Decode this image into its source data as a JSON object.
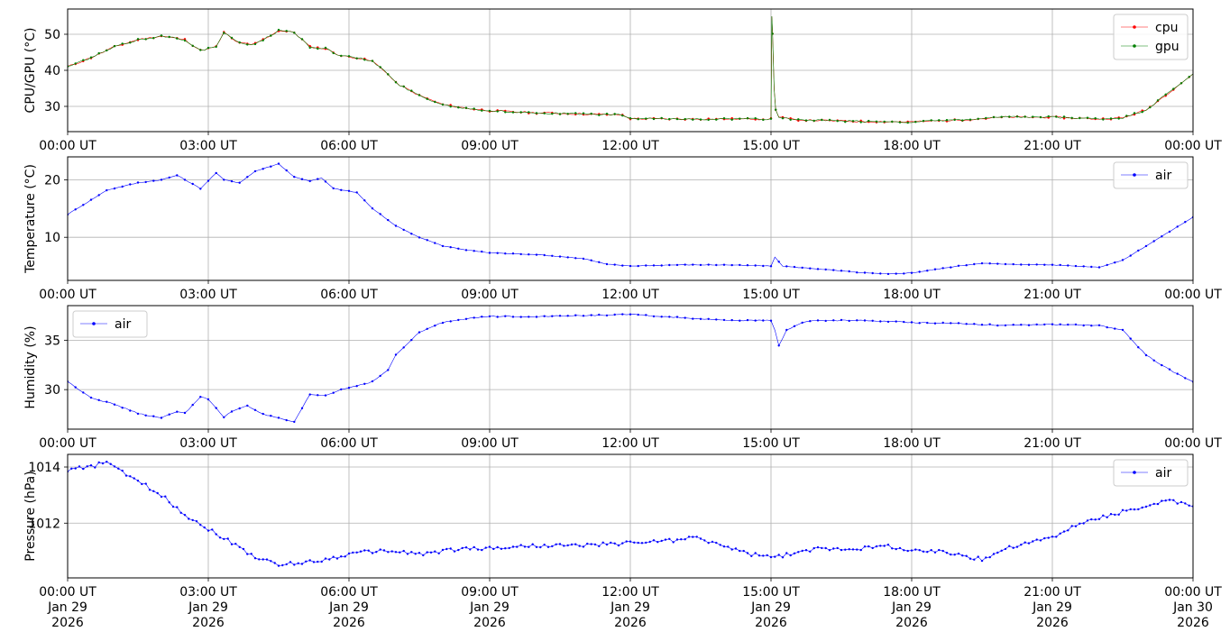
{
  "chart_data": [
    {
      "type": "line",
      "ylabel": "CPU/GPU (°C)",
      "ylim": [
        23,
        57
      ],
      "yticks": [
        30,
        40,
        50
      ],
      "legend_position": "top-right",
      "series": [
        {
          "name": "cpu",
          "color": "#ff0000",
          "x": [
            "00:00",
            "00:30",
            "01:00",
            "01:30",
            "02:00",
            "02:30",
            "02:50",
            "03:10",
            "03:20",
            "03:35",
            "03:55",
            "04:10",
            "04:30",
            "04:50",
            "05:10",
            "05:30",
            "05:50",
            "06:10",
            "06:30",
            "06:45",
            "07:00",
            "07:30",
            "08:00",
            "08:30",
            "09:00",
            "10:00",
            "11:00",
            "11:50",
            "12:00",
            "13:00",
            "14:00",
            "15:00",
            "15:01",
            "15:02",
            "15:04",
            "15:06",
            "15:10",
            "15:30",
            "16:00",
            "17:00",
            "18:00",
            "19:00",
            "20:00",
            "21:00",
            "22:00",
            "22:30",
            "23:00",
            "23:30",
            "24:00"
          ],
          "y": [
            41,
            43.5,
            46.5,
            48.5,
            49.5,
            48.5,
            45.5,
            46.5,
            50.5,
            48,
            47,
            48.5,
            51,
            50.5,
            46.5,
            46,
            44,
            43.5,
            42.5,
            40,
            36.5,
            33,
            30.5,
            29.5,
            28.8,
            28.2,
            27.9,
            27.6,
            26.6,
            26.5,
            26.5,
            26.5,
            55,
            50,
            35,
            29,
            27,
            26.3,
            26.1,
            25.8,
            25.7,
            26.2,
            27,
            27,
            26.5,
            26.8,
            29,
            34,
            39
          ]
        },
        {
          "name": "gpu",
          "color": "#008000",
          "x": [
            "00:00",
            "00:30",
            "01:00",
            "01:30",
            "02:00",
            "02:30",
            "02:50",
            "03:10",
            "03:20",
            "03:35",
            "03:55",
            "04:10",
            "04:30",
            "04:50",
            "05:10",
            "05:30",
            "05:50",
            "06:10",
            "06:30",
            "06:45",
            "07:00",
            "07:30",
            "08:00",
            "08:30",
            "09:00",
            "10:00",
            "11:00",
            "11:50",
            "12:00",
            "13:00",
            "14:00",
            "15:00",
            "15:01",
            "15:02",
            "15:04",
            "15:06",
            "15:10",
            "15:30",
            "16:00",
            "17:00",
            "18:00",
            "19:00",
            "20:00",
            "21:00",
            "22:00",
            "22:30",
            "23:00",
            "23:30",
            "24:00"
          ],
          "y": [
            41,
            43.5,
            46.5,
            48.5,
            49.5,
            48.5,
            45.5,
            46.5,
            50.5,
            48,
            47,
            48.5,
            51,
            50.5,
            46.5,
            46,
            44,
            43.5,
            42.5,
            40,
            36.5,
            33,
            30.5,
            29.5,
            28.8,
            28.2,
            27.9,
            27.6,
            26.6,
            26.5,
            26.5,
            26.5,
            55,
            50,
            35,
            29,
            27,
            26.3,
            26.1,
            25.8,
            25.7,
            26.2,
            27,
            27,
            26.5,
            26.8,
            29,
            34,
            39
          ]
        }
      ]
    },
    {
      "type": "line",
      "ylabel": "Temperature (°C)",
      "ylim": [
        2.5,
        24
      ],
      "yticks": [
        10,
        20
      ],
      "legend_position": "top-right",
      "series": [
        {
          "name": "air",
          "color": "#0000ff",
          "x": [
            "00:00",
            "00:30",
            "00:50",
            "01:30",
            "02:00",
            "02:20",
            "02:50",
            "03:10",
            "03:20",
            "03:40",
            "04:00",
            "04:30",
            "04:50",
            "05:10",
            "05:25",
            "05:40",
            "06:10",
            "06:30",
            "07:00",
            "07:30",
            "08:00",
            "08:30",
            "09:00",
            "10:00",
            "11:00",
            "11:30",
            "12:00",
            "13:00",
            "14:00",
            "15:00",
            "15:05",
            "15:15",
            "15:30",
            "16:00",
            "17:00",
            "17:30",
            "18:00",
            "19:00",
            "19:30",
            "20:00",
            "21:00",
            "21:30",
            "22:00",
            "22:30",
            "23:00",
            "23:30",
            "24:00"
          ],
          "y": [
            14,
            16.5,
            18.2,
            19.5,
            20,
            20.8,
            18.5,
            21.2,
            20,
            19.5,
            21.5,
            22.8,
            20.5,
            19.8,
            20.3,
            18.5,
            17.8,
            15,
            12,
            10,
            8.5,
            7.8,
            7.3,
            7,
            6.3,
            5.3,
            5,
            5.2,
            5.2,
            5,
            6.5,
            5,
            4.8,
            4.5,
            3.8,
            3.6,
            3.8,
            5,
            5.5,
            5.3,
            5.2,
            5,
            4.8,
            6,
            8.5,
            11,
            13.5
          ]
        }
      ]
    },
    {
      "type": "line",
      "ylabel": "Humidity (%)",
      "ylim": [
        26,
        38.5
      ],
      "yticks": [
        30,
        35
      ],
      "legend_position": "top-left",
      "series": [
        {
          "name": "air",
          "color": "#0000ff",
          "x": [
            "00:00",
            "00:30",
            "01:00",
            "01:30",
            "02:00",
            "02:10",
            "02:20",
            "02:30",
            "02:50",
            "03:00",
            "03:20",
            "03:30",
            "03:50",
            "04:10",
            "04:30",
            "04:50",
            "05:10",
            "05:30",
            "05:50",
            "06:10",
            "06:30",
            "06:50",
            "07:00",
            "07:30",
            "08:00",
            "08:30",
            "09:00",
            "10:00",
            "11:00",
            "12:00",
            "13:00",
            "14:00",
            "15:00",
            "15:05",
            "15:10",
            "15:20",
            "15:40",
            "16:00",
            "17:00",
            "18:00",
            "19:00",
            "20:00",
            "21:00",
            "22:00",
            "22:30",
            "23:00",
            "23:30",
            "24:00"
          ],
          "y": [
            30.8,
            29.2,
            28.5,
            27.6,
            27.1,
            27.5,
            27.8,
            27.6,
            29.3,
            29,
            27.2,
            27.8,
            28.4,
            27.5,
            27.1,
            26.7,
            29.5,
            29.4,
            30,
            30.4,
            30.8,
            32,
            33.5,
            35.8,
            36.8,
            37.2,
            37.4,
            37.4,
            37.5,
            37.6,
            37.3,
            37,
            37,
            36,
            34.5,
            36,
            36.8,
            37,
            37,
            36.8,
            36.7,
            36.5,
            36.6,
            36.5,
            36,
            33.5,
            32,
            30.8
          ]
        }
      ]
    },
    {
      "type": "line",
      "ylabel": "Pressure (hPa)",
      "ylim": [
        1010.05,
        1014.45
      ],
      "yticks": [
        1012,
        1014
      ],
      "legend_position": "top-right",
      "xlabel": "",
      "x_ticks": [
        "00:00 UT|Jan 29|2026",
        "03:00 UT|Jan 29|2026",
        "06:00 UT|Jan 29|2026",
        "09:00 UT|Jan 29|2026",
        "12:00 UT|Jan 29|2026",
        "15:00 UT|Jan 29|2026",
        "18:00 UT|Jan 29|2026",
        "21:00 UT|Jan 29|2026",
        "00:00 UT|Jan 30|2026"
      ],
      "series": [
        {
          "name": "air",
          "color": "#0000ff",
          "x": [
            "00:00",
            "00:30",
            "00:50",
            "01:10",
            "01:30",
            "02:00",
            "02:30",
            "03:00",
            "03:30",
            "04:00",
            "04:30",
            "05:00",
            "05:30",
            "06:00",
            "06:30",
            "07:00",
            "07:30",
            "08:00",
            "08:30",
            "09:00",
            "10:00",
            "11:00",
            "12:00",
            "13:00",
            "13:20",
            "14:00",
            "14:30",
            "15:00",
            "15:30",
            "16:00",
            "17:00",
            "17:30",
            "18:00",
            "18:30",
            "19:00",
            "19:30",
            "20:00",
            "20:30",
            "21:00",
            "21:30",
            "22:00",
            "22:30",
            "23:00",
            "23:30",
            "24:00"
          ],
          "y": [
            1013.9,
            1014,
            1014.2,
            1013.8,
            1013.5,
            1013,
            1012.3,
            1011.8,
            1011.3,
            1010.8,
            1010.5,
            1010.6,
            1010.7,
            1010.9,
            1011,
            1011,
            1010.9,
            1011,
            1011.1,
            1011.1,
            1011.2,
            1011.2,
            1011.3,
            1011.4,
            1011.5,
            1011.2,
            1010.9,
            1010.8,
            1010.9,
            1011.1,
            1011.1,
            1011.2,
            1011,
            1011,
            1010.9,
            1010.7,
            1011.1,
            1011.3,
            1011.5,
            1011.9,
            1012.2,
            1012.4,
            1012.6,
            1012.8,
            1012.6
          ]
        }
      ]
    }
  ],
  "x_axis": {
    "ticks": [
      "00:00 UT",
      "03:00 UT",
      "06:00 UT",
      "09:00 UT",
      "12:00 UT",
      "15:00 UT",
      "18:00 UT",
      "21:00 UT",
      "00:00 UT"
    ],
    "bottom_dates": [
      "Jan 29",
      "Jan 29",
      "Jan 29",
      "Jan 29",
      "Jan 29",
      "Jan 29",
      "Jan 29",
      "Jan 29",
      "Jan 30"
    ],
    "bottom_years": [
      "2026",
      "2026",
      "2026",
      "2026",
      "2026",
      "2026",
      "2026",
      "2026",
      "2026"
    ],
    "range": [
      "2026-01-29 00:00",
      "2026-01-30 00:00"
    ]
  },
  "grid": true
}
